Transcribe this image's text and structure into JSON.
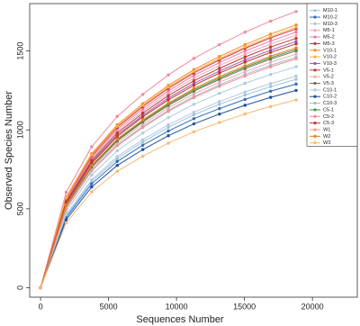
{
  "chart_data": {
    "type": "line",
    "x_label": "Sequences Number",
    "y_label": "Observed Species Number",
    "x": [
      0,
      1880,
      3760,
      5640,
      7520,
      9400,
      11280,
      13160,
      15040,
      16920,
      18800
    ],
    "xlim": [
      -800,
      23300
    ],
    "ylim": [
      -60,
      1800
    ],
    "xticks": [
      0,
      5000,
      10000,
      15000,
      20000
    ],
    "yticks": [
      0,
      500,
      1000,
      1500
    ],
    "legend": "top-right",
    "series": [
      {
        "name": "M10-1",
        "color": "#9ec3e6",
        "values": [
          0,
          455,
          673,
          818,
          924,
          1016,
          1096,
          1162,
          1221,
          1274,
          1320
        ]
      },
      {
        "name": "M10-2",
        "color": "#2f6db5",
        "values": [
          0,
          445,
          658,
          800,
          903,
          993,
          1071,
          1135,
          1193,
          1245,
          1290
        ]
      },
      {
        "name": "M10-3",
        "color": "#b4c7dc",
        "values": [
          0,
          462,
          683,
          831,
          938,
          1032,
          1112,
          1179,
          1240,
          1293,
          1340
        ]
      },
      {
        "name": "M5-1",
        "color": "#f4a6b7",
        "values": [
          0,
          552,
          816,
          992,
          1120,
          1232,
          1328,
          1408,
          1480,
          1544,
          1600
        ]
      },
      {
        "name": "M5-2",
        "color": "#e87da0",
        "values": [
          0,
          559,
          826,
          1004,
          1134,
          1247,
          1345,
          1426,
          1499,
          1563,
          1620
        ]
      },
      {
        "name": "M5-3",
        "color": "#d7263d",
        "values": [
          0,
          566,
          836,
          1017,
          1148,
          1263,
          1361,
          1443,
          1517,
          1583,
          1640
        ]
      },
      {
        "name": "V10-1",
        "color": "#f28e2b",
        "values": [
          0,
          574,
          849,
          1032,
          1166,
          1282,
          1382,
          1465,
          1540,
          1607,
          1665
        ]
      },
      {
        "name": "V10-2",
        "color": "#f5b041",
        "values": [
          0,
          569,
          842,
          1023,
          1155,
          1271,
          1370,
          1452,
          1526,
          1592,
          1650
        ]
      },
      {
        "name": "V10-3",
        "color": "#9b59b6",
        "values": [
          0,
          538,
          796,
          967,
          1092,
          1201,
          1295,
          1373,
          1443,
          1505,
          1560
        ]
      },
      {
        "name": "V5-1",
        "color": "#c0392b",
        "values": [
          0,
          533,
          788,
          958,
          1082,
          1190,
          1282,
          1360,
          1429,
          1491,
          1545
        ]
      },
      {
        "name": "V5-2",
        "color": "#e6b0aa",
        "values": [
          0,
          511,
          755,
          918,
          1036,
          1140,
          1228,
          1302,
          1369,
          1428,
          1480
        ]
      },
      {
        "name": "V5-3",
        "color": "#7f6a5a",
        "values": [
          0,
          518,
          765,
          930,
          1050,
          1155,
          1245,
          1320,
          1388,
          1448,
          1500
        ]
      },
      {
        "name": "C10-1",
        "color": "#a9cce3",
        "values": [
          0,
          483,
          714,
          868,
          980,
          1078,
          1162,
          1232,
          1295,
          1351,
          1400
        ]
      },
      {
        "name": "C10-2",
        "color": "#1f4e9c",
        "values": [
          0,
          431,
          638,
          775,
          875,
          963,
          1038,
          1100,
          1156,
          1206,
          1250
        ]
      },
      {
        "name": "C10-3",
        "color": "#aab7d6",
        "values": [
          0,
          504,
          745,
          905,
          1022,
          1124,
          1212,
          1285,
          1351,
          1409,
          1460
        ]
      },
      {
        "name": "C5-1",
        "color": "#3a9b3a",
        "values": [
          0,
          521,
          770,
          936,
          1057,
          1163,
          1253,
          1329,
          1397,
          1457,
          1510
        ]
      },
      {
        "name": "C5-2",
        "color": "#f08a9a",
        "values": [
          0,
          604,
          893,
          1085,
          1225,
          1348,
          1453,
          1540,
          1619,
          1689,
          1750
        ]
      },
      {
        "name": "C5-3",
        "color": "#c0392b",
        "values": [
          0,
          545,
          806,
          980,
          1106,
          1217,
          1311,
          1390,
          1462,
          1525,
          1580
        ]
      },
      {
        "name": "W1",
        "color": "#f1948a",
        "values": [
          0,
          500,
          740,
          899,
          1015,
          1117,
          1204,
          1276,
          1341,
          1399,
          1450
        ]
      },
      {
        "name": "W2",
        "color": "#e67e22",
        "values": [
          0,
          524,
          775,
          942,
          1064,
          1170,
          1262,
          1338,
          1406,
          1467,
          1520
        ]
      },
      {
        "name": "W3",
        "color": "#f5b971",
        "values": [
          0,
          411,
          607,
          738,
          833,
          916,
          988,
          1047,
          1101,
          1148,
          1190
        ]
      }
    ]
  }
}
